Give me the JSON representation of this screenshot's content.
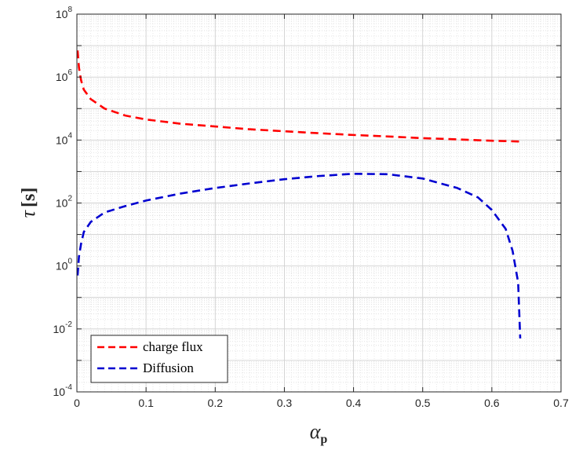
{
  "chart_data": {
    "type": "line",
    "xlabel": {
      "symbol": "α",
      "subscript": "p"
    },
    "ylabel": {
      "symbol": "τ",
      "unit": "[s]"
    },
    "xlim": [
      0,
      0.7
    ],
    "ylim": [
      0.0001,
      100000000
    ],
    "yscale": "log",
    "grid": true,
    "minor_grid": true,
    "legend_position": "bottom-left",
    "x_ticks": [
      "0",
      "0.1",
      "0.2",
      "0.3",
      "0.4",
      "0.5",
      "0.6",
      "0.7"
    ],
    "y_ticks": [
      {
        "base": "10",
        "exp": "-4"
      },
      {
        "base": "10",
        "exp": "-2"
      },
      {
        "base": "10",
        "exp": "0"
      },
      {
        "base": "10",
        "exp": "2"
      },
      {
        "base": "10",
        "exp": "4"
      },
      {
        "base": "10",
        "exp": "6"
      },
      {
        "base": "10",
        "exp": "8"
      }
    ],
    "series": [
      {
        "name": "charge flux",
        "color": "#ff0000",
        "style": "dashed",
        "x": [
          0.001,
          0.003,
          0.006,
          0.01,
          0.02,
          0.04,
          0.07,
          0.1,
          0.15,
          0.2,
          0.25,
          0.3,
          0.35,
          0.4,
          0.45,
          0.5,
          0.55,
          0.6,
          0.64
        ],
        "y": [
          7000000,
          2000000,
          800000,
          400000,
          200000,
          100000,
          60000,
          45000,
          33000,
          27000,
          22000,
          19000,
          16500,
          14500,
          13000,
          11500,
          10500,
          9500,
          9000
        ]
      },
      {
        "name": "Diffusion",
        "color": "#0000d0",
        "style": "dashed",
        "x": [
          0.001,
          0.003,
          0.006,
          0.01,
          0.02,
          0.04,
          0.07,
          0.1,
          0.15,
          0.2,
          0.25,
          0.3,
          0.35,
          0.4,
          0.45,
          0.5,
          0.55,
          0.58,
          0.6,
          0.62,
          0.63,
          0.638,
          0.64,
          0.641
        ],
        "y": [
          0.5,
          2,
          5,
          12,
          25,
          50,
          80,
          120,
          200,
          300,
          420,
          570,
          720,
          850,
          820,
          600,
          300,
          150,
          60,
          15,
          3,
          0.3,
          0.02,
          0.005
        ]
      }
    ]
  }
}
